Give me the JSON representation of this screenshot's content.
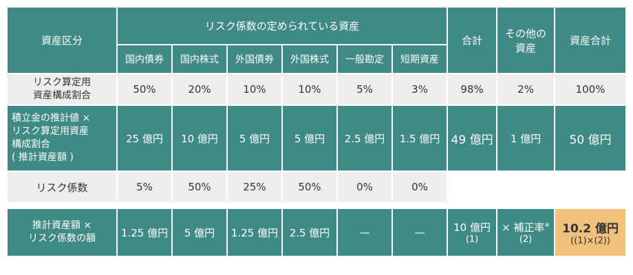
{
  "header": {
    "col_asset_class": "資産区分",
    "group_label": "リスク係数の定められている資産",
    "col_total": "合計",
    "col_other_line1": "その他の",
    "col_other_line2": "資産",
    "col_asset_total": "資産合計",
    "sub_columns": [
      "国内債券",
      "国内株式",
      "外国債券",
      "外国株式",
      "一般勘定",
      "短期資産"
    ]
  },
  "rows": {
    "allocation": {
      "label_line1": "リスク算定用",
      "label_line2": "資産構成割合",
      "values": [
        "50%",
        "20%",
        "10%",
        "10%",
        "5%",
        "3%"
      ],
      "total": "98%",
      "other": "2%",
      "asset_total": "100%"
    },
    "estimated": {
      "label_line1": "積立金の推計値 ×",
      "label_line2": "リスク算定用資産",
      "label_line3": "構成割合",
      "label_line4": "( 推計資産額 )",
      "values": [
        "25 億円",
        "10 億円",
        "5 億円",
        "5 億円",
        "2.5 億円",
        "1.5 億円"
      ],
      "total": "49 億円",
      "other": "1 億円",
      "asset_total": "50 億円"
    },
    "risk_coef": {
      "label": "リスク係数",
      "values": [
        "5%",
        "50%",
        "25%",
        "50%",
        "0%",
        "0%"
      ]
    },
    "product": {
      "label_line1": "推計資産額 ×",
      "label_line2": "リスク係数の額",
      "values": [
        "1.25 億円",
        "5 億円",
        "1.25 億円",
        "2.5 億円",
        "—",
        "—"
      ],
      "total_line1": "10 億円",
      "total_line2": "(1)",
      "other_line1": "× 補正率",
      "other_mark": "※",
      "other_line2": "(2)",
      "result_line1": "10.2 億円",
      "result_line2": "((1)×(2))"
    }
  },
  "colors": {
    "teal": "#3f8a84",
    "grey": "#ededed",
    "orange": "#f1c07d"
  }
}
